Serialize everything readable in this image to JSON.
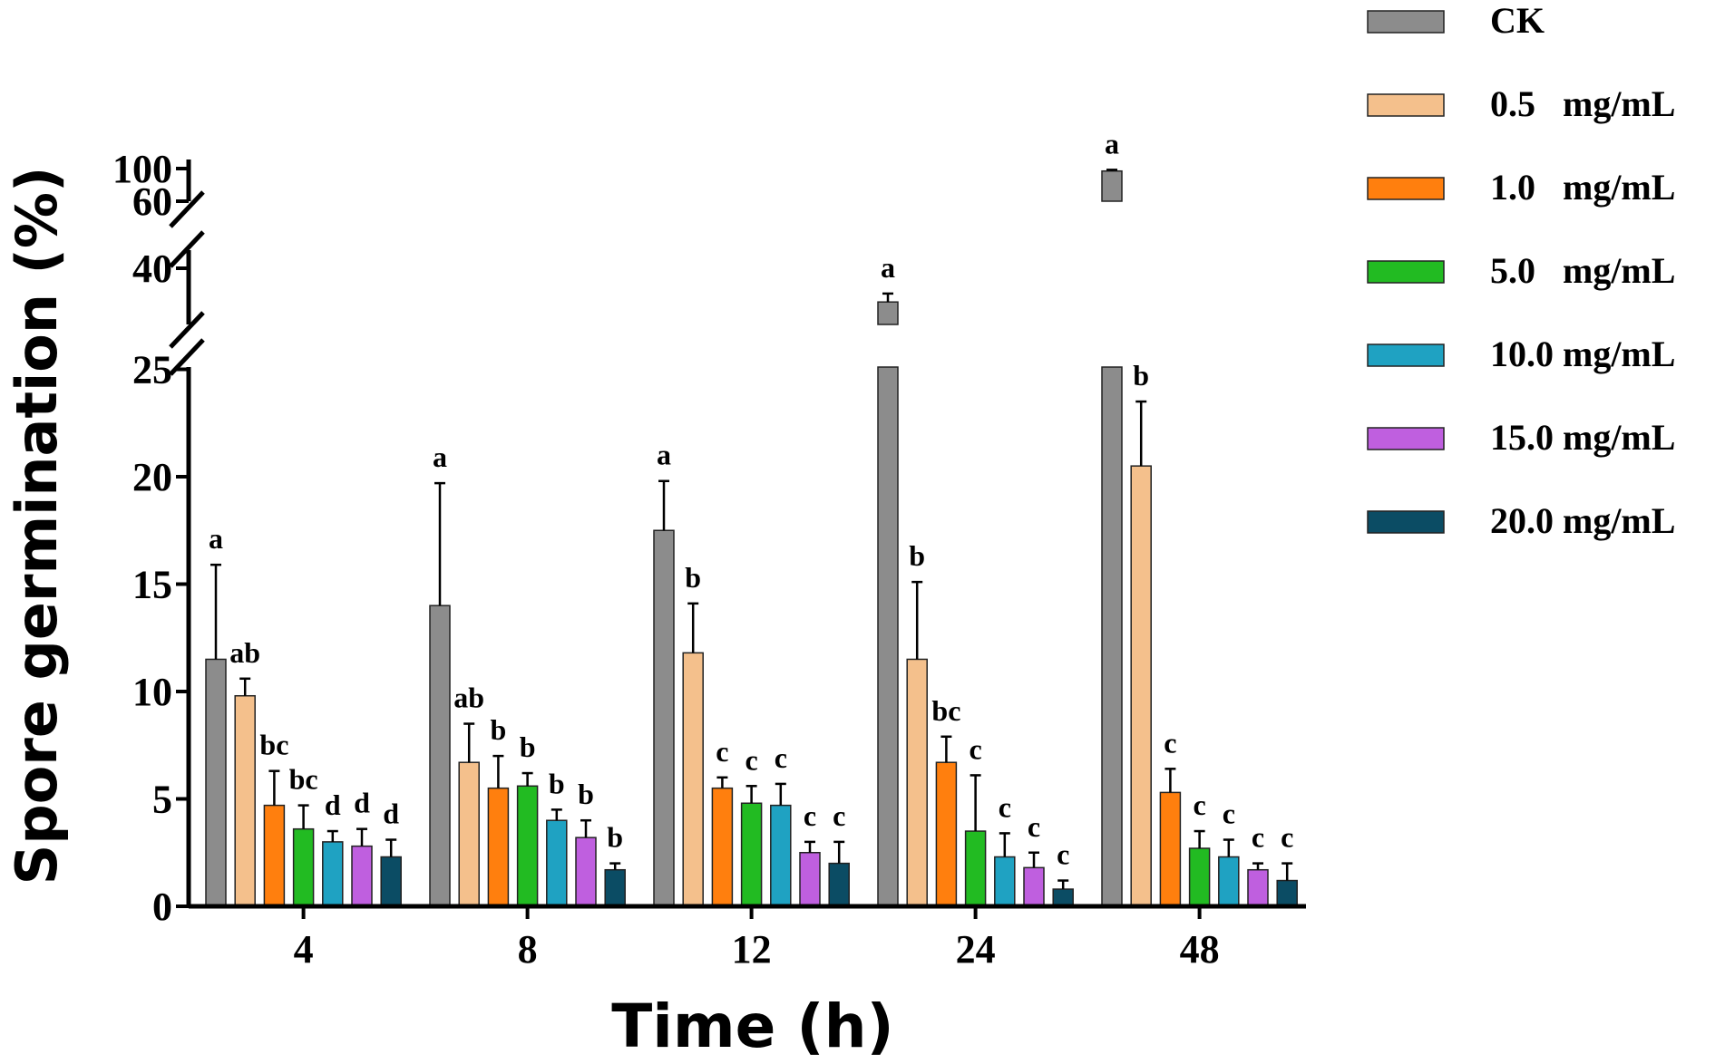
{
  "chart_data": {
    "type": "bar",
    "title": "",
    "xlabel": "Time (h)",
    "ylabel": "Spore germination (%)",
    "categories": [
      "4",
      "8",
      "12",
      "24",
      "48"
    ],
    "y_axis": {
      "broken": true,
      "segments": [
        {
          "range": [
            0,
            25
          ],
          "ticks": [
            "0",
            "5",
            "10",
            "15",
            "20",
            "25"
          ]
        },
        {
          "range": [
            30,
            40
          ],
          "ticks": [
            "40"
          ]
        },
        {
          "range": [
            60,
            100
          ],
          "ticks": [
            "60",
            "100"
          ]
        }
      ]
    },
    "series": [
      {
        "name": "CK",
        "color": "#8c8c8c",
        "values": [
          11.5,
          14.0,
          17.5,
          34.0,
          97.0
        ],
        "errors": [
          4.4,
          5.7,
          2.3,
          1.5,
          1.5
        ],
        "labels": [
          "a",
          "a",
          "a",
          "a",
          "a"
        ]
      },
      {
        "name": "0.5   mg/mL",
        "color": "#f4c08c",
        "values": [
          9.8,
          6.7,
          11.8,
          11.5,
          20.5
        ],
        "errors": [
          0.8,
          1.8,
          2.3,
          3.6,
          3.0
        ],
        "labels": [
          "ab",
          "ab",
          "b",
          "b",
          "b"
        ]
      },
      {
        "name": "1.0   mg/mL",
        "color": "#ff7f0e",
        "values": [
          4.7,
          5.5,
          5.5,
          6.7,
          5.3
        ],
        "errors": [
          1.6,
          1.5,
          0.5,
          1.2,
          1.1
        ],
        "labels": [
          "bc",
          "b",
          "c",
          "bc",
          "c"
        ]
      },
      {
        "name": "5.0   mg/mL",
        "color": "#22bb22",
        "values": [
          3.6,
          5.6,
          4.8,
          3.5,
          2.7
        ],
        "errors": [
          1.1,
          0.6,
          0.8,
          2.6,
          0.8
        ],
        "labels": [
          "bc",
          "b",
          "c",
          "c",
          "c"
        ]
      },
      {
        "name": "10.0 mg/mL",
        "color": "#1fa2c2",
        "values": [
          3.0,
          4.0,
          4.7,
          2.3,
          2.3
        ],
        "errors": [
          0.5,
          0.5,
          1.0,
          1.1,
          0.8
        ],
        "labels": [
          "d",
          "b",
          "c",
          "c",
          "c"
        ]
      },
      {
        "name": "15.0 mg/mL",
        "color": "#bf5fdf",
        "values": [
          2.8,
          3.2,
          2.5,
          1.8,
          1.7
        ],
        "errors": [
          0.8,
          0.8,
          0.5,
          0.7,
          0.3
        ],
        "labels": [
          "d",
          "b",
          "c",
          "c",
          "c"
        ]
      },
      {
        "name": "20.0 mg/mL",
        "color": "#0b4c64",
        "values": [
          2.3,
          1.7,
          2.0,
          0.8,
          1.2
        ],
        "errors": [
          0.8,
          0.3,
          1.0,
          0.4,
          0.8
        ],
        "labels": [
          "d",
          "b",
          "c",
          "c",
          "c"
        ]
      }
    ],
    "legend_position": "right"
  }
}
